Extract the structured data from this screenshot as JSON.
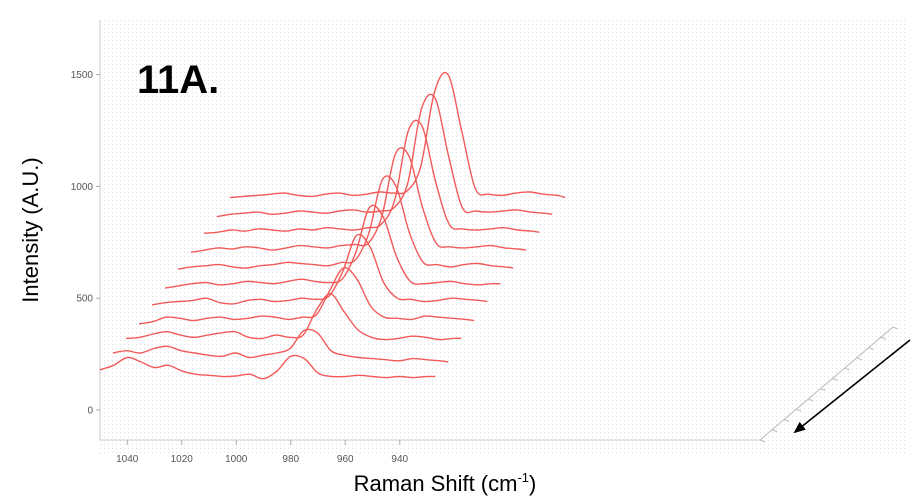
{
  "chart_data": {
    "type": "line",
    "subtype": "3d-waterfall",
    "panel_label": "11A.",
    "xlabel": "Raman Shift (cm",
    "xlabel_superscript": "-1",
    "xlabel_suffix": ")",
    "ylabel": "Intensity (A.U.)",
    "x_ticks": [
      1040,
      1020,
      1000,
      980,
      960,
      940
    ],
    "y_ticks": [
      0,
      500,
      1000,
      1500
    ],
    "x_reversed": true,
    "xlim": [
      1050,
      927
    ],
    "ylim": [
      -50,
      1750
    ],
    "grid": false,
    "legend": "none",
    "series_color": "#f25a5a",
    "depth_arrow": true,
    "series": [
      {
        "x": [
          1050,
          1045,
          1040,
          1035,
          1030,
          1025,
          1020,
          1015,
          1010,
          1005,
          1000,
          995,
          990,
          985,
          980,
          975,
          970,
          965,
          960,
          955,
          950,
          945,
          940,
          935,
          930,
          927
        ],
        "values": [
          180,
          200,
          235,
          215,
          190,
          200,
          175,
          160,
          155,
          150,
          152,
          160,
          140,
          175,
          240,
          230,
          165,
          150,
          150,
          155,
          150,
          145,
          150,
          145,
          150,
          150
        ]
      },
      {
        "x": [
          1050,
          1045,
          1040,
          1035,
          1030,
          1025,
          1020,
          1015,
          1010,
          1005,
          1000,
          995,
          990,
          985,
          980,
          975,
          970,
          965,
          960,
          955,
          950,
          945,
          940,
          935,
          930,
          927
        ],
        "values": [
          200,
          210,
          200,
          220,
          230,
          210,
          200,
          190,
          185,
          200,
          180,
          190,
          200,
          220,
          300,
          290,
          210,
          190,
          180,
          175,
          170,
          165,
          175,
          170,
          165,
          160
        ]
      },
      {
        "x": [
          1050,
          1045,
          1040,
          1035,
          1030,
          1025,
          1020,
          1015,
          1010,
          1005,
          1000,
          995,
          990,
          985,
          980,
          975,
          970,
          965,
          960,
          955,
          950,
          945,
          940,
          935,
          930,
          927
        ],
        "values": [
          210,
          215,
          230,
          240,
          225,
          215,
          225,
          235,
          240,
          215,
          210,
          225,
          215,
          225,
          340,
          410,
          330,
          250,
          215,
          205,
          210,
          220,
          215,
          205,
          210,
          210
        ]
      },
      {
        "x": [
          1050,
          1045,
          1040,
          1035,
          1030,
          1025,
          1020,
          1015,
          1010,
          1005,
          1000,
          995,
          990,
          985,
          980,
          975,
          970,
          965,
          960,
          955,
          950,
          945,
          940,
          935,
          930,
          927
        ],
        "values": [
          220,
          230,
          250,
          245,
          235,
          245,
          250,
          240,
          245,
          255,
          250,
          240,
          250,
          260,
          370,
          470,
          420,
          300,
          250,
          245,
          240,
          255,
          250,
          245,
          240,
          235
        ]
      },
      {
        "x": [
          1050,
          1045,
          1040,
          1035,
          1030,
          1025,
          1020,
          1015,
          1010,
          1005,
          1000,
          995,
          990,
          985,
          980,
          975,
          970,
          965,
          960,
          955,
          950,
          945,
          940,
          935,
          930,
          927
        ],
        "values": [
          250,
          260,
          265,
          270,
          280,
          260,
          255,
          270,
          275,
          265,
          270,
          280,
          275,
          290,
          400,
          560,
          510,
          350,
          280,
          275,
          265,
          270,
          280,
          275,
          270,
          265
        ]
      },
      {
        "x": [
          1050,
          1045,
          1040,
          1035,
          1030,
          1025,
          1020,
          1015,
          1010,
          1005,
          1000,
          995,
          990,
          985,
          980,
          975,
          970,
          965,
          960,
          955,
          950,
          945,
          940,
          935,
          930,
          927
        ],
        "values": [
          270,
          280,
          290,
          295,
          285,
          290,
          300,
          295,
          290,
          300,
          310,
          300,
          295,
          310,
          430,
          630,
          590,
          410,
          300,
          290,
          295,
          300,
          290,
          285,
          290,
          290
        ]
      },
      {
        "x": [
          1050,
          1045,
          1040,
          1035,
          1030,
          1025,
          1020,
          1015,
          1010,
          1005,
          1000,
          995,
          990,
          985,
          980,
          975,
          970,
          965,
          960,
          955,
          950,
          945,
          940,
          935,
          930,
          927
        ],
        "values": [
          300,
          310,
          315,
          320,
          310,
          305,
          315,
          320,
          330,
          325,
          320,
          315,
          330,
          340,
          460,
          700,
          670,
          460,
          330,
          320,
          310,
          320,
          325,
          315,
          310,
          305
        ]
      },
      {
        "x": [
          1050,
          1045,
          1040,
          1035,
          1030,
          1025,
          1020,
          1015,
          1010,
          1005,
          1000,
          995,
          990,
          985,
          980,
          975,
          970,
          965,
          960,
          955,
          950,
          945,
          940,
          935,
          930,
          927
        ],
        "values": [
          320,
          330,
          340,
          335,
          345,
          340,
          330,
          340,
          350,
          345,
          340,
          350,
          355,
          360,
          480,
          760,
          750,
          520,
          360,
          345,
          340,
          345,
          350,
          340,
          335,
          330
        ]
      },
      {
        "x": [
          1050,
          1045,
          1040,
          1035,
          1030,
          1025,
          1020,
          1015,
          1010,
          1005,
          1000,
          995,
          990,
          985,
          980,
          975,
          970,
          965,
          960,
          955,
          950,
          945,
          940,
          935,
          930,
          927
        ],
        "values": [
          350,
          355,
          365,
          360,
          370,
          365,
          360,
          370,
          365,
          375,
          370,
          365,
          375,
          390,
          500,
          810,
          830,
          580,
          390,
          370,
          365,
          370,
          375,
          365,
          360,
          355
        ]
      },
      {
        "x": [
          1050,
          1045,
          1040,
          1035,
          1030,
          1025,
          1020,
          1015,
          1010,
          1005,
          1000,
          995,
          990,
          985,
          980,
          975,
          970,
          965,
          960,
          955,
          950,
          945,
          940,
          935,
          930,
          927
        ],
        "values": [
          370,
          380,
          385,
          390,
          380,
          385,
          395,
          390,
          385,
          395,
          400,
          390,
          395,
          410,
          520,
          850,
          900,
          640,
          410,
          395,
          390,
          395,
          400,
          390,
          385,
          380
        ]
      },
      {
        "x": [
          1050,
          1045,
          1040,
          1035,
          1030,
          1025,
          1020,
          1015,
          1010,
          1005,
          1000,
          995,
          990,
          985,
          980,
          975,
          970,
          965,
          960,
          955,
          950,
          945,
          940,
          935,
          930,
          927
        ],
        "values": [
          400,
          405,
          410,
          415,
          420,
          410,
          405,
          415,
          420,
          410,
          415,
          425,
          420,
          430,
          540,
          870,
          950,
          700,
          440,
          415,
          410,
          420,
          425,
          415,
          410,
          400
        ]
      }
    ]
  }
}
